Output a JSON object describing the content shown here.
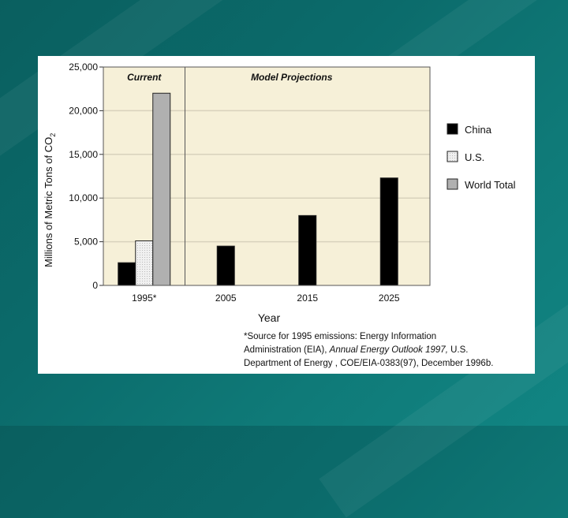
{
  "colors": {
    "background": "#0b6b6b",
    "plot_background": "#f6f0d8",
    "china": "#000000",
    "us": "#f0f0f0",
    "world": "#b0b0b0"
  },
  "chart_data": {
    "type": "bar",
    "title": "",
    "xlabel": "Year",
    "ylabel": "Millions of Metric Tons of CO",
    "ylabel_subscript": "2",
    "ylim": [
      0,
      25000
    ],
    "yticks": [
      "0",
      "5,000",
      "10,000",
      "15,000",
      "20,000",
      "25,000"
    ],
    "ytick_values": [
      0,
      5000,
      10000,
      15000,
      20000,
      25000
    ],
    "categories": [
      "1995*",
      "2005",
      "2015",
      "2025"
    ],
    "series": [
      {
        "name": "China",
        "values": [
          2600,
          4500,
          8000,
          12300
        ]
      },
      {
        "name": "U.S.",
        "values": [
          5100,
          null,
          null,
          null
        ]
      },
      {
        "name": "World Total",
        "values": [
          22000,
          null,
          null,
          null
        ]
      }
    ],
    "region_labels": [
      "Current",
      "Model Projections"
    ],
    "grid": true,
    "legend_position": "right"
  },
  "footnote": {
    "line1": "*Source for 1995 emissions:  Energy Information",
    "line2_prefix": "Administration (EIA), ",
    "line2_italic": "Annual Energy Outlook 1997,",
    "line2_suffix": "  U.S.",
    "line3": "Department of Energy , COE/EIA-0383(97), December 1996b."
  }
}
